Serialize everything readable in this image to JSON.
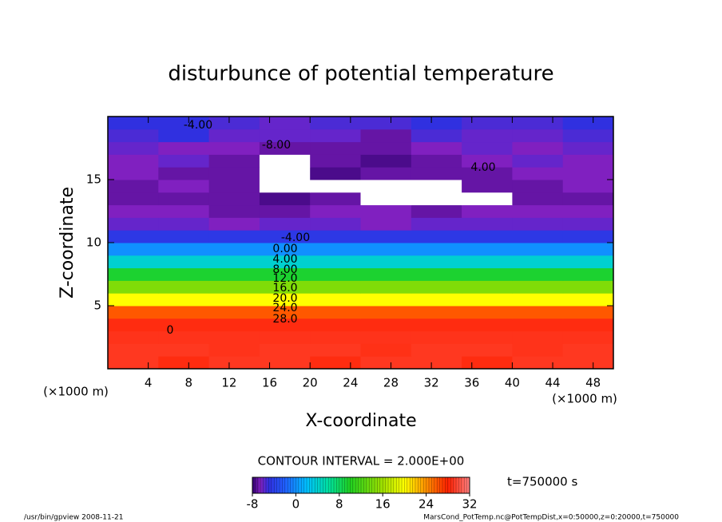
{
  "chart_data": {
    "type": "heatmap",
    "title": "disturbunce of potential temperature",
    "xlabel": "X-coordinate",
    "ylabel": "Z-coordinate",
    "axis_unit": "(×1000 m)",
    "x": [
      2.5,
      7.5,
      12.5,
      17.5,
      22.5,
      27.5,
      32.5,
      37.5,
      42.5,
      47.5
    ],
    "y": [
      0.5,
      1.5,
      2.5,
      3.5,
      4.5,
      5.5,
      6.5,
      7.5,
      8.5,
      9.5,
      10.5,
      11.5,
      12.5,
      13.5,
      14.5,
      15.5,
      16.5,
      17.5,
      18.5,
      19.5
    ],
    "z": [
      [
        29,
        28.5,
        29,
        29,
        28.5,
        29,
        29,
        28.5,
        29,
        29
      ],
      [
        29,
        29,
        28.8,
        29,
        29,
        28.7,
        29,
        29,
        28.8,
        29
      ],
      [
        28.8,
        28.8,
        28.8,
        28.8,
        28.8,
        28.8,
        28.8,
        28.8,
        28.8,
        28.8
      ],
      [
        28.5,
        28.5,
        28.5,
        28.5,
        28.5,
        28.5,
        28.5,
        28.5,
        28.5,
        28.5
      ],
      [
        26,
        26,
        26,
        26,
        26,
        26,
        26,
        26,
        26,
        26
      ],
      [
        20,
        20,
        20,
        20,
        20,
        20,
        20,
        20,
        20,
        20
      ],
      [
        14.5,
        14.5,
        14.5,
        14.5,
        14.5,
        14.5,
        14.5,
        14.5,
        14.5,
        14.5
      ],
      [
        9.5,
        9.5,
        9.5,
        9.5,
        9.5,
        9.5,
        9.5,
        9.5,
        9.5,
        9.5
      ],
      [
        4,
        4,
        4,
        4,
        4,
        4,
        4,
        4,
        4,
        4
      ],
      [
        0,
        0,
        0,
        0,
        0,
        0,
        0,
        0,
        0,
        0
      ],
      [
        -4.5,
        -4.5,
        -4.5,
        -4.5,
        -4.5,
        -4.5,
        -4.5,
        -4.5,
        -4.5,
        -4.5
      ],
      [
        -6,
        -6,
        -6.5,
        -6,
        -6,
        -6.5,
        -6,
        -6,
        -6,
        -6
      ],
      [
        -6.5,
        -6.5,
        -7,
        -7,
        -6.5,
        -6.5,
        -7,
        -6.5,
        -6.5,
        -6.5
      ],
      [
        -7,
        -7,
        -7,
        -7.5,
        -7,
        -9,
        -9,
        -9,
        -7,
        -7
      ],
      [
        -7,
        -6.5,
        -7,
        -9,
        -8.5,
        -9,
        -9,
        -7,
        -7,
        -6.5
      ],
      [
        -6.5,
        -7,
        -7,
        -9,
        -7.5,
        -7,
        -7,
        -7,
        -6.5,
        -6.5
      ],
      [
        -6.5,
        -6,
        -7,
        -9,
        -7,
        -7.5,
        -7,
        -6.5,
        -6,
        -6.5
      ],
      [
        -6,
        -6.5,
        -6.5,
        -7,
        -7,
        -7,
        -6.5,
        -6,
        -6.5,
        -6
      ],
      [
        -5.5,
        -5,
        -6,
        -6,
        -6,
        -7,
        -5.5,
        -6,
        -6,
        -5.5
      ],
      [
        -5,
        -5,
        -5.5,
        -6,
        -5.5,
        -5.5,
        -5,
        -5.5,
        -5.5,
        -5
      ]
    ],
    "xlim": [
      0,
      50
    ],
    "xticks": [
      4,
      8,
      12,
      16,
      20,
      24,
      28,
      32,
      36,
      40,
      44,
      48
    ],
    "ylim": [
      0,
      20
    ],
    "yticks": [
      5,
      10,
      15
    ],
    "clim": [
      -8,
      32
    ],
    "cticks": [
      -8,
      0,
      8,
      16,
      24,
      32
    ],
    "colormap": [
      {
        "value": -8,
        "color": "#300070"
      },
      {
        "value": -6.5,
        "color": "#8020c0"
      },
      {
        "value": -5,
        "color": "#3030e0"
      },
      {
        "value": -2,
        "color": "#2060ff"
      },
      {
        "value": 2,
        "color": "#00c0ff"
      },
      {
        "value": 6,
        "color": "#00e0a0"
      },
      {
        "value": 10,
        "color": "#20d020"
      },
      {
        "value": 16,
        "color": "#a0e000"
      },
      {
        "value": 20,
        "color": "#ffff00"
      },
      {
        "value": 24,
        "color": "#ff9000"
      },
      {
        "value": 28,
        "color": "#ff2000"
      },
      {
        "value": 32,
        "color": "#ff8080"
      }
    ],
    "contour_labels": [
      "-4.00",
      "-8.00",
      "4.00",
      "-4.00",
      "0.00",
      "4.00",
      "8.00",
      "12.0",
      "16.0",
      "20.0",
      "24.0",
      "28.0",
      "0"
    ],
    "contour_interval": "CONTOUR INTERVAL = 2.000E+00",
    "time_label": "t=750000 s",
    "footer_left": "/usr/bin/gpview  2008-11-21",
    "footer_right": "MarsCond_PotTemp.nc@PotTempDist,x=0:50000,z=0:20000,t=750000"
  }
}
